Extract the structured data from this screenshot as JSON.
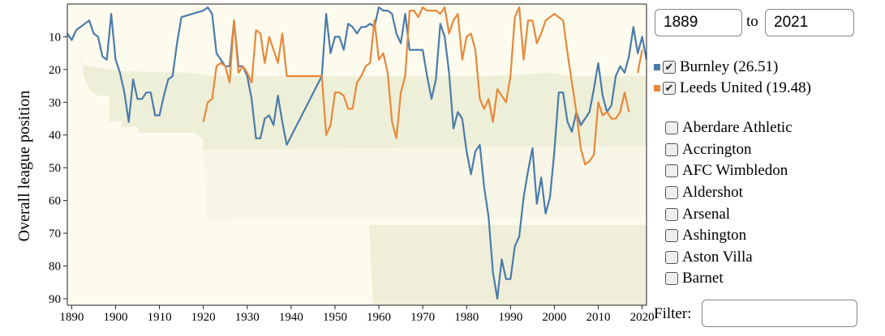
{
  "chart_data": {
    "type": "line",
    "y_label": "Overall league position",
    "ylim": [
      0,
      92
    ],
    "xlim": [
      1889,
      2021
    ],
    "y_inverted": true,
    "yticks": [
      10,
      20,
      30,
      40,
      50,
      60,
      70,
      80,
      90
    ],
    "xticks": [
      1890,
      1900,
      1910,
      1920,
      1930,
      1940,
      1950,
      1960,
      1970,
      1980,
      1990,
      2000,
      2010,
      2020
    ],
    "series": [
      {
        "name": "Burnley",
        "legend_label": "Burnley (26.51)",
        "color": "#4a7bab",
        "x": [
          1889,
          1890,
          1891,
          1892,
          1893,
          1894,
          1895,
          1896,
          1897,
          1898,
          1899,
          1900,
          1901,
          1902,
          1903,
          1904,
          1905,
          1906,
          1907,
          1908,
          1909,
          1910,
          1911,
          1912,
          1913,
          1914,
          1915,
          1920,
          1921,
          1922,
          1923,
          1924,
          1925,
          1926,
          1927,
          1928,
          1929,
          1930,
          1931,
          1932,
          1933,
          1934,
          1935,
          1936,
          1937,
          1938,
          1939,
          1947,
          1948,
          1949,
          1950,
          1951,
          1952,
          1953,
          1954,
          1955,
          1956,
          1957,
          1958,
          1959,
          1960,
          1961,
          1962,
          1963,
          1964,
          1965,
          1966,
          1967,
          1968,
          1969,
          1970,
          1971,
          1972,
          1973,
          1974,
          1975,
          1976,
          1977,
          1978,
          1979,
          1980,
          1981,
          1982,
          1983,
          1984,
          1985,
          1986,
          1987,
          1988,
          1989,
          1990,
          1991,
          1992,
          1993,
          1994,
          1995,
          1996,
          1997,
          1998,
          1999,
          2000,
          2001,
          2002,
          2003,
          2004,
          2005,
          2006,
          2007,
          2008,
          2009,
          2010,
          2011,
          2012,
          2013,
          2014,
          2015,
          2016,
          2017,
          2018,
          2019,
          2020,
          2021
        ],
        "values": [
          9,
          11,
          8,
          7,
          6,
          5,
          9,
          10,
          16,
          17,
          3,
          17,
          21,
          27,
          36,
          23,
          29,
          29,
          27,
          27,
          34,
          34,
          28,
          23,
          22,
          12,
          4,
          2,
          1,
          3,
          15,
          17,
          19,
          19,
          5,
          19,
          19,
          22,
          29,
          41,
          41,
          35,
          34,
          37,
          28,
          36,
          43,
          22,
          3,
          15,
          10,
          10,
          14,
          6,
          7,
          9,
          7,
          7,
          6,
          7,
          1,
          2,
          2,
          3,
          9,
          12,
          3,
          14,
          14,
          14,
          14,
          22,
          29,
          23,
          6,
          10,
          21,
          38,
          33,
          35,
          45,
          52,
          45,
          43,
          56,
          65,
          82,
          90,
          78,
          84,
          84,
          74,
          71,
          59,
          51,
          44,
          61,
          53,
          64,
          59,
          45,
          27,
          27,
          36,
          39,
          33,
          37,
          35,
          33,
          26,
          18,
          28,
          33,
          31,
          22,
          19,
          21,
          16,
          7,
          15,
          10,
          17
        ]
      },
      {
        "name": "Leeds United",
        "legend_label": "Leeds United (19.48)",
        "color": "#e8883a",
        "x": [
          1920,
          1921,
          1922,
          1923,
          1924,
          1925,
          1926,
          1927,
          1928,
          1929,
          1930,
          1931,
          1932,
          1933,
          1934,
          1935,
          1936,
          1937,
          1938,
          1939,
          1946,
          1947,
          1948,
          1949,
          1950,
          1951,
          1952,
          1953,
          1954,
          1955,
          1956,
          1957,
          1958,
          1959,
          1960,
          1961,
          1962,
          1963,
          1964,
          1965,
          1966,
          1967,
          1968,
          1969,
          1970,
          1971,
          1972,
          1973,
          1974,
          1975,
          1976,
          1977,
          1978,
          1979,
          1980,
          1981,
          1982,
          1983,
          1984,
          1985,
          1986,
          1987,
          1988,
          1989,
          1990,
          1991,
          1992,
          1993,
          1994,
          1995,
          1996,
          1997,
          1998,
          1999,
          2000,
          2001,
          2002,
          2003,
          2004,
          2005,
          2006,
          2007,
          2008,
          2009,
          2010,
          2011,
          2012,
          2013,
          2014,
          2015,
          2016,
          2017,
          2018,
          2019,
          2020
        ],
        "values": [
          36,
          30,
          29,
          19,
          18,
          19,
          24,
          5,
          21,
          19,
          21,
          24,
          8,
          9,
          18,
          10,
          14,
          18,
          9,
          22,
          22,
          22,
          40,
          37,
          27,
          27,
          28,
          32,
          32,
          24,
          22,
          19,
          18,
          5,
          17,
          15,
          21,
          36,
          41,
          27,
          22,
          2,
          2,
          4,
          1,
          2,
          2,
          2,
          3,
          1,
          9,
          5,
          3,
          17,
          10,
          9,
          14,
          29,
          32,
          29,
          36,
          26,
          28,
          30,
          22,
          4,
          1,
          17,
          5,
          5,
          12,
          9,
          5,
          4,
          3,
          4,
          5,
          15,
          24,
          33,
          44,
          49,
          48,
          46,
          30,
          34,
          33,
          35,
          35,
          33,
          27,
          33,
          null,
          21,
          14
        ]
      }
    ]
  },
  "controls": {
    "from": "1889",
    "to_label": "to",
    "to": "2021",
    "filter_label": "Filter:",
    "teams": [
      "Aberdare Athletic",
      "Accrington",
      "AFC Wimbledon",
      "Aldershot",
      "Arsenal",
      "Ashington",
      "Aston Villa",
      "Barnet"
    ]
  }
}
